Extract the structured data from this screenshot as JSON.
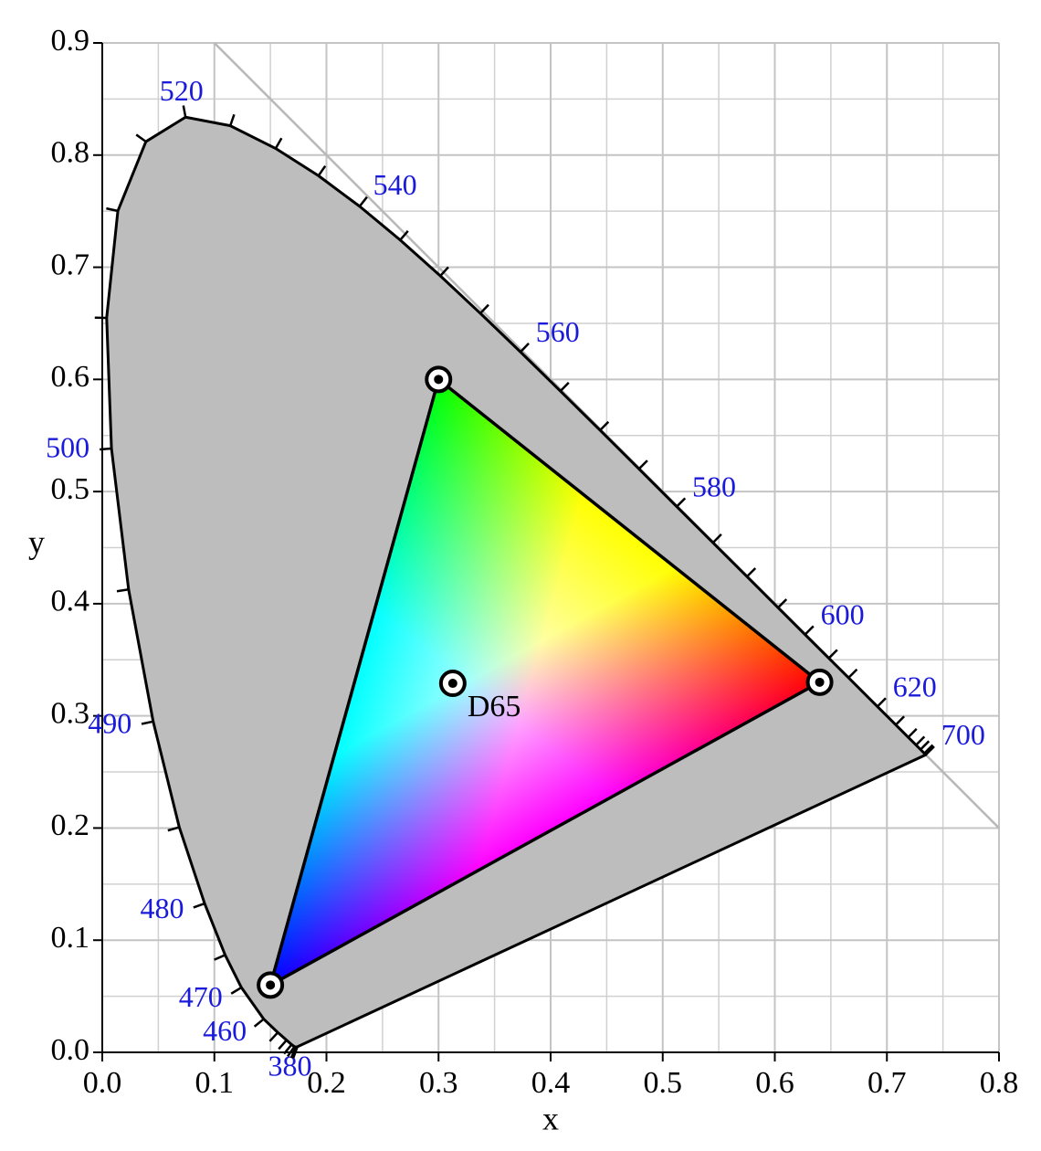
{
  "chart_data": {
    "type": "chromaticity",
    "xlabel": "x",
    "ylabel": "y",
    "xlim": [
      0,
      0.8
    ],
    "ylim": [
      0,
      0.9
    ],
    "xticks": [
      {
        "value": 0,
        "label": "0.0"
      },
      0.1,
      0.2,
      0.3,
      0.4,
      0.5,
      0.6,
      0.7,
      0.8
    ],
    "yticks": [
      {
        "value": 0,
        "label": "0.0"
      },
      0.1,
      0.2,
      0.3,
      0.4,
      0.5,
      0.6,
      0.7,
      0.8,
      0.9
    ],
    "grid": true,
    "minor_grid": true,
    "locus_color": "#bdbdbd",
    "label_color": "#1a1adb",
    "reference_line": {
      "x": [
        0.1,
        0.8
      ],
      "y": [
        0.9,
        0.2
      ],
      "color": "#b8b8b8"
    },
    "locus": {
      "wavelengths": [
        "380",
        null,
        null,
        null,
        null,
        null,
        null,
        null,
        "460",
        "470",
        null,
        "480",
        null,
        "490",
        null,
        "500",
        null,
        null,
        null,
        "520",
        null,
        null,
        null,
        "540",
        null,
        null,
        null,
        "560",
        null,
        null,
        null,
        "580",
        null,
        null,
        null,
        "600",
        null,
        null,
        "620",
        null,
        null,
        null,
        null,
        null,
        "700"
      ],
      "x": [
        0.1741,
        0.1738,
        0.1733,
        0.1726,
        0.1714,
        0.1689,
        0.1644,
        0.1566,
        0.144,
        0.1241,
        0.1096,
        0.0913,
        0.0687,
        0.0454,
        0.0235,
        0.0082,
        0.0039,
        0.0139,
        0.0389,
        0.0743,
        0.1142,
        0.1547,
        0.1929,
        0.2296,
        0.2658,
        0.3016,
        0.3373,
        0.3731,
        0.4087,
        0.4441,
        0.4788,
        0.5125,
        0.5448,
        0.5752,
        0.6029,
        0.627,
        0.6482,
        0.6658,
        0.6915,
        0.7079,
        0.719,
        0.726,
        0.73,
        0.7334,
        0.7347
      ],
      "y": [
        0.005,
        0.0049,
        0.0048,
        0.0048,
        0.0051,
        0.0069,
        0.0109,
        0.0177,
        0.0297,
        0.0578,
        0.0868,
        0.1327,
        0.2007,
        0.295,
        0.4127,
        0.5384,
        0.6548,
        0.7502,
        0.812,
        0.8338,
        0.8262,
        0.8059,
        0.7816,
        0.7543,
        0.7243,
        0.6923,
        0.6589,
        0.6245,
        0.5896,
        0.5547,
        0.5202,
        0.4866,
        0.4544,
        0.4242,
        0.3965,
        0.3725,
        0.3514,
        0.334,
        0.3083,
        0.292,
        0.2809,
        0.274,
        0.27,
        0.2666,
        0.2653
      ]
    },
    "gamut": {
      "x": [
        0.64,
        0.3,
        0.15
      ],
      "y": [
        0.33,
        0.6,
        0.06
      ],
      "colors": [
        "#ff0000",
        "#00ff00",
        "#0000ff"
      ]
    },
    "white_point": {
      "label": "D65",
      "x": 0.3127,
      "y": 0.329
    }
  }
}
